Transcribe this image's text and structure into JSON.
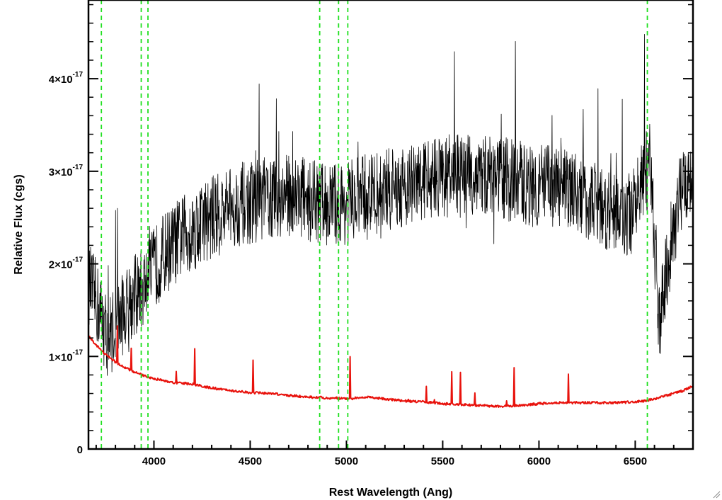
{
  "chart_data": {
    "type": "line",
    "xlabel": "Rest Wavelength (Ang)",
    "ylabel": "Relative Flux (cgs)",
    "xlim": [
      3660,
      6800
    ],
    "ylim": [
      0,
      4.85
    ],
    "y_unit_exponent": "-17",
    "x_ticks": [
      4000,
      4500,
      5000,
      5500,
      6000,
      6500
    ],
    "y_ticks": [
      {
        "value": 0,
        "label": "0"
      },
      {
        "value": 1,
        "label": "1×10",
        "exp": "-17"
      },
      {
        "value": 2,
        "label": "2×10",
        "exp": "-17"
      },
      {
        "value": 3,
        "label": "3×10",
        "exp": "-17"
      },
      {
        "value": 4,
        "label": "4×10",
        "exp": "-17"
      }
    ],
    "vertical_markers": [
      3727,
      3934,
      3969,
      4861,
      4959,
      5007,
      6563
    ],
    "marker_style": "dashed",
    "grid": false,
    "series": [
      {
        "color": "#000000",
        "x": [
          3660,
          3700,
          3760,
          3800,
          3850,
          3900,
          3950,
          4000,
          4050,
          4100,
          4150,
          4200,
          4250,
          4300,
          4350,
          4400,
          4450,
          4500,
          4550,
          4600,
          4650,
          4700,
          4750,
          4800,
          4850,
          4900,
          4950,
          5000,
          5050,
          5100,
          5150,
          5200,
          5250,
          5300,
          5350,
          5400,
          5450,
          5500,
          5550,
          5600,
          5650,
          5700,
          5750,
          5800,
          5850,
          5900,
          5950,
          6000,
          6050,
          6100,
          6150,
          6200,
          6250,
          6300,
          6350,
          6400,
          6450,
          6500,
          6540,
          6580,
          6600,
          6620,
          6650,
          6700,
          6750,
          6800
        ],
        "y": [
          1.8,
          1.6,
          1.2,
          1.35,
          1.5,
          1.65,
          1.75,
          1.95,
          2.1,
          2.2,
          2.3,
          2.35,
          2.45,
          2.5,
          2.55,
          2.6,
          2.65,
          2.65,
          2.7,
          2.7,
          2.7,
          2.75,
          2.75,
          2.7,
          2.65,
          2.65,
          2.65,
          2.65,
          2.7,
          2.75,
          2.75,
          2.8,
          2.8,
          2.85,
          2.85,
          2.9,
          2.95,
          2.95,
          2.95,
          2.95,
          2.95,
          2.95,
          2.95,
          2.95,
          2.9,
          2.9,
          2.85,
          2.85,
          2.85,
          2.8,
          2.8,
          2.75,
          2.7,
          2.65,
          2.6,
          2.55,
          2.5,
          2.6,
          2.9,
          3.1,
          2.2,
          1.2,
          1.8,
          2.4,
          2.9,
          3.0
        ]
      },
      {
        "color": "#e8120c",
        "x": [
          3660,
          3700,
          3750,
          3800,
          3850,
          3900,
          3950,
          4000,
          4050,
          4100,
          4200,
          4300,
          4400,
          4500,
          4600,
          4700,
          4800,
          4850,
          4900,
          4950,
          5000,
          5050,
          5100,
          5200,
          5300,
          5400,
          5500,
          5600,
          5700,
          5800,
          5900,
          6000,
          6100,
          6200,
          6300,
          6400,
          6500,
          6550,
          6600,
          6650,
          6700,
          6750,
          6800
        ],
        "y": [
          1.22,
          1.12,
          1.02,
          0.94,
          0.88,
          0.83,
          0.79,
          0.76,
          0.74,
          0.72,
          0.7,
          0.66,
          0.63,
          0.61,
          0.6,
          0.58,
          0.56,
          0.56,
          0.55,
          0.55,
          0.54,
          0.55,
          0.56,
          0.54,
          0.52,
          0.51,
          0.49,
          0.48,
          0.47,
          0.46,
          0.47,
          0.49,
          0.5,
          0.5,
          0.5,
          0.5,
          0.51,
          0.52,
          0.54,
          0.57,
          0.6,
          0.63,
          0.68
        ]
      }
    ]
  },
  "icons": {
    "resize": "resize-grip-icon"
  }
}
